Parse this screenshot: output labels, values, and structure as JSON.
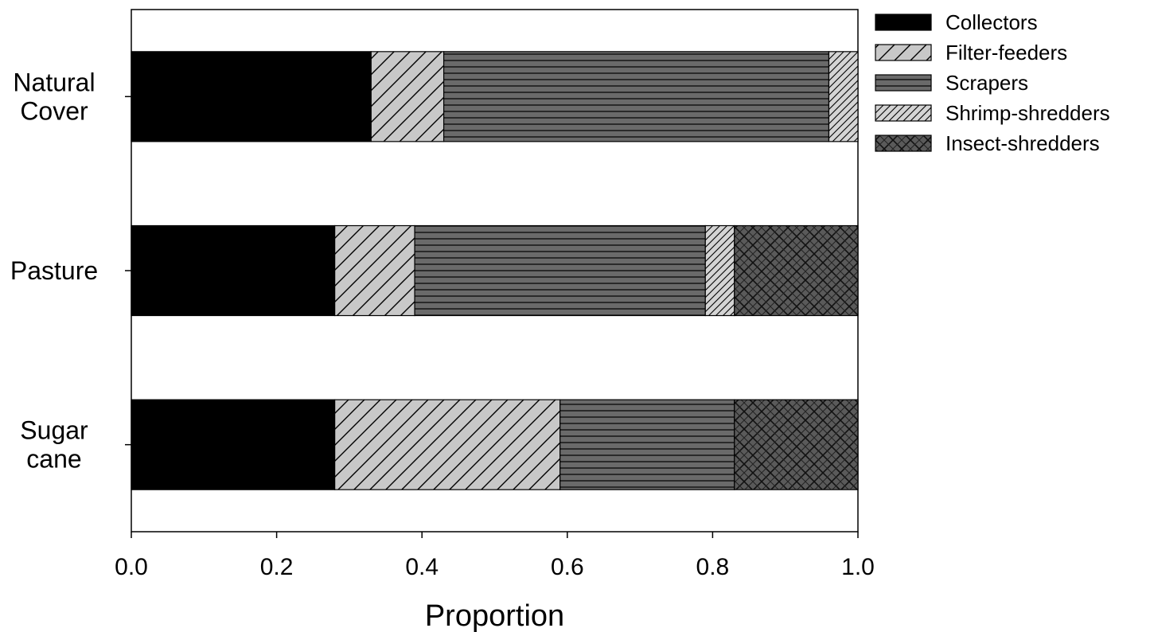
{
  "chart_data": {
    "type": "bar",
    "orientation": "horizontal",
    "stacked": true,
    "title": "",
    "xlabel": "Proportion",
    "ylabel": "",
    "xlim": [
      0,
      1
    ],
    "x_ticks": [
      "0.0",
      "0.2",
      "0.4",
      "0.6",
      "0.8",
      "1.0"
    ],
    "categories": [
      {
        "lines": [
          "Natural",
          "Cover"
        ]
      },
      {
        "lines": [
          "Pasture"
        ]
      },
      {
        "lines": [
          "Sugar",
          "cane"
        ]
      }
    ],
    "series": [
      {
        "name": "Collectors",
        "pattern": "solid-black",
        "values": [
          0.33,
          0.28,
          0.28
        ]
      },
      {
        "name": "Filter-feeders",
        "pattern": "wide-diagonal-lightgray",
        "values": [
          0.1,
          0.11,
          0.31
        ]
      },
      {
        "name": "Scrapers",
        "pattern": "horizontal-lines-darkgray",
        "values": [
          0.53,
          0.4,
          0.24
        ]
      },
      {
        "name": "Shrimp-shredders",
        "pattern": "dense-diagonal-lightgray",
        "values": [
          0.04,
          0.04,
          0.0
        ]
      },
      {
        "name": "Insect-shredders",
        "pattern": "crosshatch-darkgray",
        "values": [
          0.0,
          0.17,
          0.17
        ]
      }
    ],
    "legend_position": "top-right-outside",
    "grid": false
  }
}
